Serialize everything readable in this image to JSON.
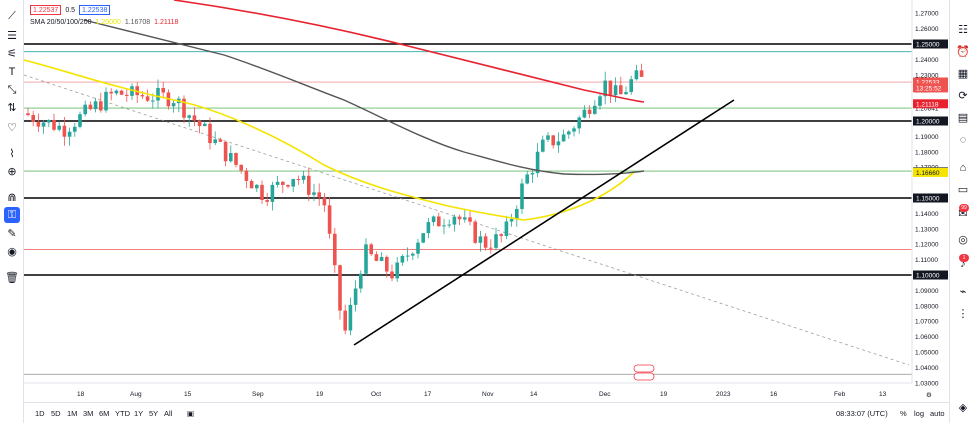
{
  "legend": {
    "bid": "1.22537",
    "spread": "0.5",
    "ask": "1.22538",
    "indicator_label": "SMA 20/50/100/200",
    "sma_values": [
      {
        "value": "1.20000",
        "color": "#e8e800"
      },
      {
        "value": "1.16708",
        "color": "#555555"
      },
      {
        "value": "1.21118",
        "color": "#e8232f"
      }
    ]
  },
  "colors": {
    "up": "#26a69a",
    "down": "#ef5350",
    "sma50": "#f5e400",
    "sma100": "#555555",
    "sma200": "#e8232f",
    "level": "#000000",
    "accent": "#2962ff"
  },
  "price_axis": {
    "ticks": [
      "1.27000",
      "1.26000",
      "1.24000",
      "1.23000",
      "1.22000",
      "1.20841",
      "1.19000",
      "1.18000",
      "1.17000",
      "1.14000",
      "1.13000",
      "1.12000",
      "1.11000",
      "1.09000",
      "1.08000",
      "1.07000",
      "1.06000",
      "1.05000",
      "1.04000",
      "1.03000"
    ],
    "tick_values": [
      1.27,
      1.26,
      1.24,
      1.23,
      1.22,
      1.20841,
      1.19,
      1.18,
      1.17,
      1.14,
      1.13,
      1.12,
      1.11,
      1.09,
      1.08,
      1.07,
      1.06,
      1.05,
      1.04,
      1.03
    ],
    "badges": [
      {
        "label": "1.25000",
        "value": 1.25,
        "bg": "#131722",
        "fg": "#ffffff"
      },
      {
        "label": "1.22533",
        "value": 1.22533,
        "bg": "#ef5350",
        "fg": "#ffffff"
      },
      {
        "label": "13:25:52",
        "value": 1.2215,
        "bg": "#ef5350",
        "fg": "#ffffff"
      },
      {
        "label": "1.21118",
        "value": 1.21118,
        "bg": "#e8232f",
        "fg": "#ffffff"
      },
      {
        "label": "1.20000",
        "value": 1.2,
        "bg": "#131722",
        "fg": "#ffffff"
      },
      {
        "label": "1.16708",
        "value": 1.16708,
        "bg": "#555555",
        "fg": "#ffffff"
      },
      {
        "label": "1.16660",
        "value": 1.1666,
        "bg": "#f5e400",
        "fg": "#131722"
      },
      {
        "label": "1.15000",
        "value": 1.15,
        "bg": "#131722",
        "fg": "#ffffff"
      },
      {
        "label": "1.10000",
        "value": 1.1,
        "bg": "#131722",
        "fg": "#ffffff"
      }
    ]
  },
  "time_axis": {
    "labels": [
      "18",
      "Aug",
      "15",
      "Sep",
      "19",
      "Oct",
      "17",
      "Nov",
      "14",
      "Dec",
      "19",
      "2023",
      "16",
      "Feb",
      "13"
    ]
  },
  "horizontal_levels": [
    {
      "value": 1.25,
      "color": "#000000"
    },
    {
      "value": 1.2,
      "color": "#000000"
    },
    {
      "value": 1.15,
      "color": "#000000"
    },
    {
      "value": 1.1,
      "color": "#000000"
    },
    {
      "value": 1.245,
      "color": "#2aa8a8"
    },
    {
      "value": 1.2084,
      "color": "#66bb6a"
    },
    {
      "value": 1.1675,
      "color": "#66bb6a"
    },
    {
      "value": 1.1165,
      "color": "#ef5350"
    },
    {
      "value": 1.2253,
      "color": "#ef9a9a"
    },
    {
      "value": 1.0355,
      "color": "#9e9e9e"
    }
  ],
  "bottom": {
    "ranges": [
      "1D",
      "5D",
      "1M",
      "3M",
      "6M",
      "YTD",
      "1Y",
      "5Y",
      "All"
    ],
    "time": "08:33:07 (UTC)",
    "percent": "%",
    "log": "log",
    "auto": "auto"
  },
  "icons": {
    "left": [
      "cursor-icon",
      "crosshair-lines-icon",
      "fib-icon",
      "brush-icon",
      "text-icon",
      "pattern-icon",
      "measure-icon",
      "heart-icon",
      "ruler-icon",
      "zoom-icon",
      "magnet-icon",
      "lock-drawings-icon",
      "eye-icon",
      "trash-icon"
    ],
    "right": [
      "watchlist-icon",
      "alerts-icon",
      "data-window-icon",
      "hotlist-icon",
      "calendar-icon",
      "ideas-icon",
      "streams-icon",
      "chat-icon",
      "notifications-icon",
      "broadcast-icon",
      "help-icon",
      "layers-icon"
    ]
  }
}
